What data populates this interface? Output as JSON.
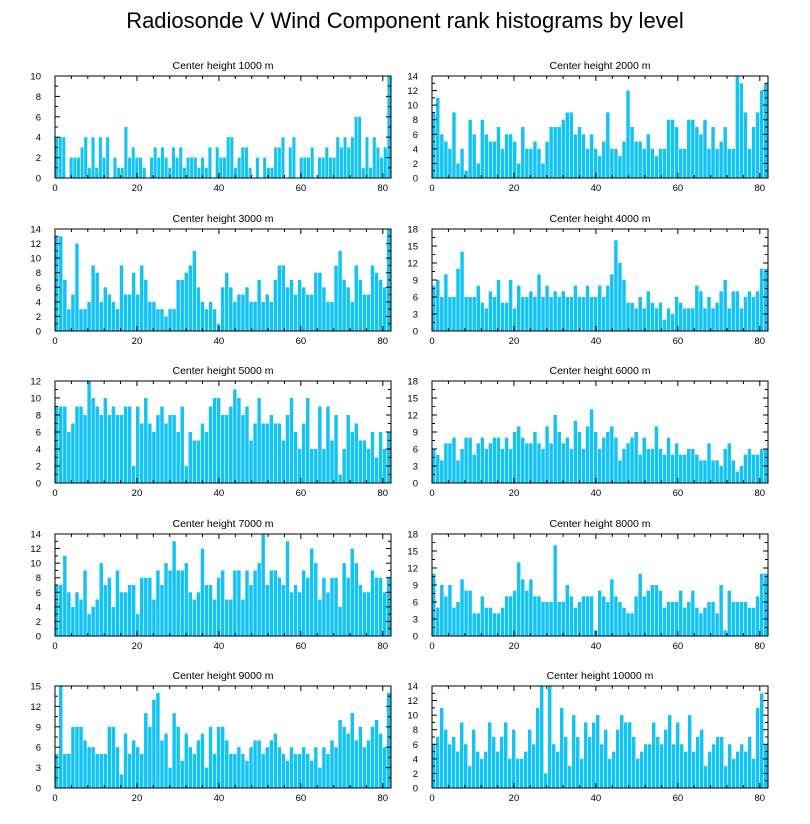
{
  "title": "Radiosonde V Wind Component rank histograms by level",
  "bar_color": "#12c3f3",
  "chart_data": [
    {
      "type": "bar",
      "title": "Center height 1000 m",
      "xlim": [
        0,
        82
      ],
      "xticks": [
        0,
        20,
        40,
        60,
        80
      ],
      "ylim": [
        0,
        10
      ],
      "yticks": [
        0,
        2,
        4,
        6,
        8,
        10
      ],
      "values": [
        4,
        4,
        4,
        0,
        2,
        2,
        2,
        3,
        4,
        1,
        4,
        1,
        4,
        2,
        4,
        0,
        2,
        1,
        1,
        5,
        2,
        3,
        2,
        2,
        1,
        0,
        2,
        3,
        2,
        3,
        2,
        1,
        3,
        2,
        3,
        1,
        2,
        2,
        2,
        1,
        2,
        1,
        3,
        0,
        3,
        2,
        2,
        4,
        4,
        1,
        2,
        3,
        3,
        1,
        0,
        2,
        0,
        2,
        1,
        1,
        3,
        3,
        4,
        0,
        3,
        4,
        0,
        2,
        2,
        2,
        3,
        0,
        2,
        2,
        3,
        2,
        2,
        4,
        3,
        4,
        3,
        4,
        6,
        6,
        1,
        4,
        1,
        4,
        3,
        2,
        3,
        10
      ]
    },
    {
      "type": "bar",
      "title": "Center height 2000 m",
      "xlim": [
        0,
        82
      ],
      "xticks": [
        0,
        20,
        40,
        60,
        80
      ],
      "ylim": [
        0,
        14
      ],
      "yticks": [
        0,
        2,
        4,
        6,
        8,
        10,
        12,
        14
      ],
      "values": [
        9,
        11,
        6,
        5,
        4,
        9,
        2,
        4,
        1,
        8,
        6,
        2,
        8,
        6,
        5,
        5,
        7,
        4,
        6,
        6,
        5,
        2,
        7,
        4,
        4,
        5,
        4,
        2,
        5,
        7,
        7,
        7,
        8,
        9,
        9,
        6,
        7,
        6,
        4,
        6,
        4,
        3,
        5,
        9,
        4,
        4,
        3,
        5,
        12,
        7,
        5,
        5,
        4,
        6,
        4,
        3,
        4,
        4,
        8,
        8,
        7,
        4,
        4,
        8,
        8,
        7,
        6,
        8,
        4,
        7,
        4,
        5,
        7,
        4,
        4,
        14,
        13,
        9,
        4,
        7,
        9,
        12,
        13
      ]
    },
    {
      "type": "bar",
      "title": "Center height 3000 m",
      "xlim": [
        0,
        82
      ],
      "xticks": [
        0,
        20,
        40,
        60,
        80
      ],
      "ylim": [
        0,
        14
      ],
      "yticks": [
        0,
        2,
        4,
        6,
        8,
        10,
        12,
        14
      ],
      "values": [
        13,
        13,
        7,
        3,
        5,
        12,
        3,
        3,
        4,
        9,
        8,
        4,
        6,
        5,
        4,
        3,
        9,
        5,
        5,
        8,
        5,
        9,
        7,
        4,
        4,
        3,
        3,
        2,
        3,
        3,
        7,
        7,
        8,
        9,
        11,
        6,
        4,
        3,
        4,
        3,
        1,
        6,
        8,
        6,
        4,
        5,
        5,
        6,
        4,
        4,
        7,
        4,
        5,
        4,
        7,
        9,
        9,
        6,
        7,
        5,
        7,
        6,
        5,
        5,
        8,
        8,
        6,
        4,
        4,
        9,
        11,
        7,
        6,
        4,
        9,
        7,
        5,
        5,
        9,
        8,
        7,
        6,
        14
      ]
    },
    {
      "type": "bar",
      "title": "Center height 4000 m",
      "xlim": [
        0,
        82
      ],
      "xticks": [
        0,
        20,
        40,
        60,
        80
      ],
      "ylim": [
        0,
        18
      ],
      "yticks": [
        0,
        3,
        6,
        9,
        12,
        15,
        18
      ],
      "values": [
        8,
        9,
        6,
        10,
        6,
        6,
        11,
        14,
        6,
        6,
        6,
        8,
        5,
        4,
        7,
        6,
        9,
        5,
        5,
        9,
        4,
        8,
        6,
        6,
        7,
        6,
        10,
        6,
        8,
        6,
        7,
        6,
        7,
        6,
        6,
        8,
        6,
        6,
        8,
        6,
        6,
        8,
        6,
        8,
        10,
        16,
        12,
        9,
        5,
        5,
        4,
        6,
        4,
        7,
        5,
        4,
        5,
        2,
        4,
        3,
        6,
        5,
        4,
        4,
        4,
        8,
        7,
        4,
        6,
        4,
        5,
        7,
        9,
        4,
        7,
        7,
        4,
        6,
        7,
        6,
        7,
        11,
        11
      ]
    },
    {
      "type": "bar",
      "title": "Center height 5000 m",
      "xlim": [
        0,
        82
      ],
      "xticks": [
        0,
        20,
        40,
        60,
        80
      ],
      "ylim": [
        0,
        12
      ],
      "yticks": [
        0,
        2,
        4,
        6,
        8,
        10,
        12
      ],
      "values": [
        9,
        9,
        9,
        6,
        7,
        9,
        9,
        8,
        12,
        10,
        9,
        8,
        10,
        8,
        9,
        8,
        8,
        9,
        9,
        2,
        9,
        7,
        10,
        7,
        6,
        8,
        9,
        7,
        8,
        8,
        6,
        9,
        2,
        6,
        5,
        5,
        7,
        6,
        9,
        10,
        10,
        8,
        8,
        9,
        11,
        10,
        8,
        9,
        5,
        7,
        10,
        7,
        7,
        8,
        7,
        7,
        5,
        8,
        10,
        6,
        4,
        7,
        10,
        4,
        4,
        9,
        4,
        9,
        5,
        8,
        1,
        4,
        8,
        6,
        7,
        5,
        5,
        4,
        6,
        3,
        6,
        4,
        6
      ]
    },
    {
      "type": "bar",
      "title": "Center height 6000 m",
      "xlim": [
        0,
        82
      ],
      "xticks": [
        0,
        20,
        40,
        60,
        80
      ],
      "ylim": [
        0,
        18
      ],
      "yticks": [
        0,
        3,
        6,
        9,
        12,
        15,
        18
      ],
      "values": [
        6,
        5,
        4,
        7,
        7,
        8,
        4,
        6,
        8,
        8,
        5,
        7,
        8,
        6,
        7,
        8,
        8,
        6,
        8,
        6,
        9,
        10,
        8,
        7,
        7,
        9,
        7,
        6,
        10,
        7,
        12,
        9,
        7,
        8,
        6,
        11,
        9,
        6,
        10,
        13,
        9,
        6,
        8,
        9,
        10,
        8,
        4,
        6,
        7,
        8,
        9,
        5,
        8,
        6,
        6,
        10,
        6,
        5,
        8,
        5,
        7,
        5,
        5,
        6,
        6,
        5,
        4,
        4,
        7,
        4,
        4,
        3,
        6,
        7,
        4,
        2,
        3,
        5,
        6,
        5,
        5,
        6,
        6
      ]
    },
    {
      "type": "bar",
      "title": "Center height 7000 m",
      "xlim": [
        0,
        82
      ],
      "xticks": [
        0,
        20,
        40,
        60,
        80
      ],
      "ylim": [
        0,
        14
      ],
      "yticks": [
        0,
        2,
        4,
        6,
        8,
        10,
        12,
        14
      ],
      "values": [
        7,
        7,
        11,
        6,
        4,
        6,
        5,
        9,
        3,
        4,
        5,
        10,
        7,
        8,
        4,
        9,
        6,
        6,
        7,
        7,
        3,
        8,
        8,
        8,
        5,
        9,
        7,
        10,
        9,
        13,
        9,
        9,
        10,
        6,
        5,
        6,
        12,
        7,
        7,
        5,
        8,
        9,
        5,
        5,
        9,
        9,
        5,
        9,
        7,
        9,
        10,
        14,
        7,
        9,
        9,
        8,
        7,
        13,
        6,
        7,
        6,
        9,
        8,
        12,
        10,
        5,
        8,
        6,
        8,
        8,
        4,
        10,
        8,
        12,
        10,
        7,
        6,
        6,
        9,
        8,
        8,
        6,
        8
      ]
    },
    {
      "type": "bar",
      "title": "Center height 8000 m",
      "xlim": [
        0,
        82
      ],
      "xticks": [
        0,
        20,
        40,
        60,
        80
      ],
      "ylim": [
        0,
        18
      ],
      "yticks": [
        0,
        3,
        6,
        9,
        12,
        15,
        18
      ],
      "values": [
        11,
        5,
        9,
        7,
        9,
        5,
        6,
        10,
        8,
        8,
        4,
        4,
        7,
        5,
        5,
        4,
        4,
        5,
        7,
        7,
        8,
        13,
        10,
        8,
        10,
        7,
        7,
        6,
        6,
        6,
        16,
        6,
        6,
        9,
        7,
        5,
        6,
        7,
        7,
        7,
        1,
        8,
        7,
        6,
        10,
        7,
        6,
        5,
        4,
        4,
        7,
        11,
        7,
        8,
        9,
        9,
        8,
        5,
        6,
        6,
        6,
        8,
        5,
        6,
        8,
        5,
        4,
        5,
        6,
        6,
        4,
        9,
        1,
        8,
        6,
        6,
        6,
        6,
        5,
        5,
        7,
        11,
        11
      ]
    },
    {
      "type": "bar",
      "title": "Center height 9000 m",
      "xlim": [
        0,
        82
      ],
      "xticks": [
        0,
        20,
        40,
        60,
        80
      ],
      "ylim": [
        0,
        15
      ],
      "yticks": [
        0,
        3,
        6,
        9,
        12,
        15
      ],
      "values": [
        5,
        15,
        5,
        5,
        9,
        9,
        9,
        7,
        6,
        6,
        5,
        5,
        5,
        9,
        9,
        6,
        2,
        8,
        5,
        7,
        6,
        5,
        11,
        9,
        13,
        14,
        7,
        8,
        3,
        11,
        9,
        4,
        8,
        6,
        5,
        7,
        8,
        3,
        9,
        5,
        9,
        9,
        7,
        5,
        5,
        6,
        5,
        4,
        6,
        7,
        7,
        5,
        6,
        7,
        8,
        6,
        5,
        4,
        6,
        5,
        5,
        6,
        5,
        4,
        6,
        3,
        6,
        5,
        7,
        6,
        10,
        9,
        8,
        11,
        7,
        9,
        6,
        7,
        9,
        10,
        8,
        6,
        14
      ]
    },
    {
      "type": "bar",
      "title": "Center height 10000 m",
      "xlim": [
        0,
        82
      ],
      "xticks": [
        0,
        20,
        40,
        60,
        80
      ],
      "ylim": [
        0,
        14
      ],
      "yticks": [
        0,
        2,
        4,
        6,
        8,
        10,
        12,
        14
      ],
      "values": [
        6,
        7,
        11,
        8,
        6,
        7,
        5,
        9,
        6,
        3,
        8,
        5,
        4,
        5,
        9,
        7,
        5,
        7,
        9,
        4,
        8,
        4,
        4,
        5,
        8,
        6,
        11,
        14,
        2,
        14,
        6,
        5,
        11,
        7,
        3,
        10,
        7,
        4,
        9,
        7,
        9,
        10,
        6,
        8,
        4,
        5,
        8,
        10,
        9,
        9,
        7,
        4,
        5,
        6,
        6,
        9,
        7,
        6,
        8,
        10,
        6,
        9,
        6,
        5,
        10,
        5,
        7,
        8,
        3,
        5,
        6,
        7,
        7,
        3,
        6,
        4,
        5,
        6,
        5,
        7,
        4,
        11,
        13,
        6
      ]
    }
  ]
}
